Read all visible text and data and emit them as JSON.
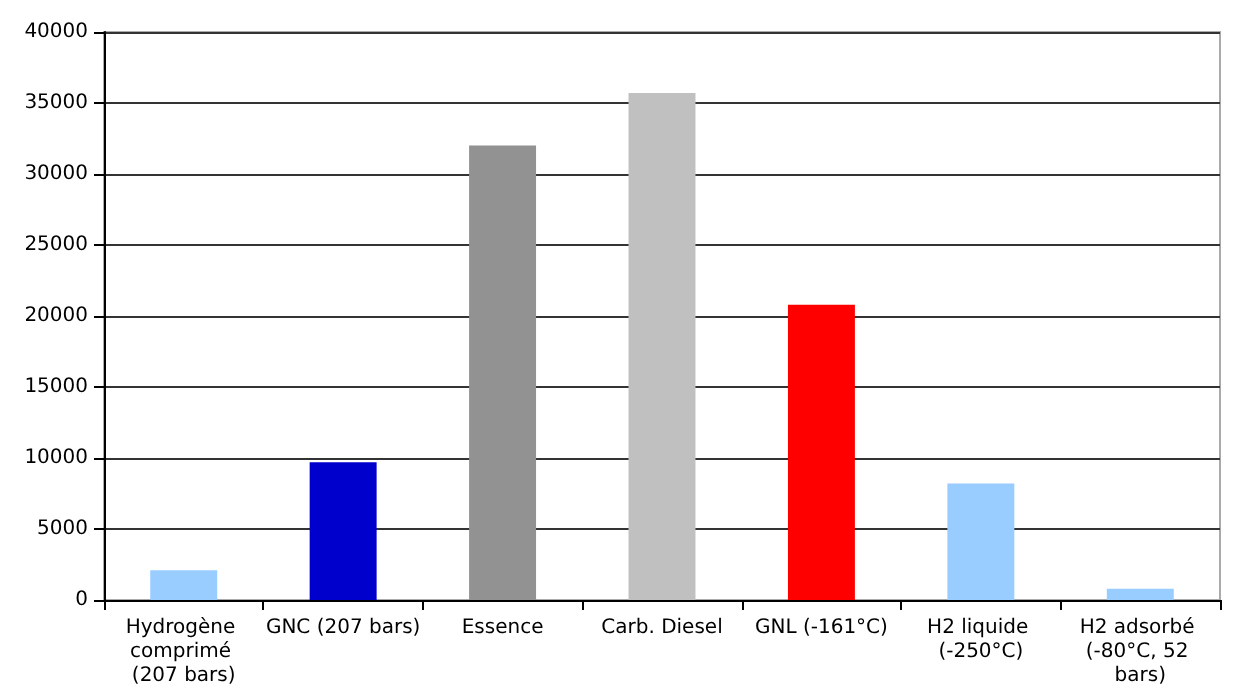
{
  "chart_data": {
    "type": "bar",
    "categories": [
      "Hydrogène comprimé (207 bars)",
      "GNC (207 bars)",
      "Essence",
      "Carb. Diesel",
      "GNL (-161°C)",
      "H2 liquide (-250°C)",
      "H2 adsorbé (-80°C, 52 bars)"
    ],
    "values": [
      2100,
      9700,
      32000,
      35700,
      20800,
      8200,
      800
    ],
    "colors": [
      "#99ccff",
      "#0000cc",
      "#929292",
      "#c0c0c0",
      "#ff0000",
      "#99ccff",
      "#99ccff"
    ],
    "ylim": [
      0,
      40000
    ],
    "yticks": [
      0,
      5000,
      10000,
      15000,
      20000,
      25000,
      30000,
      35000,
      40000
    ],
    "grid": "y"
  }
}
